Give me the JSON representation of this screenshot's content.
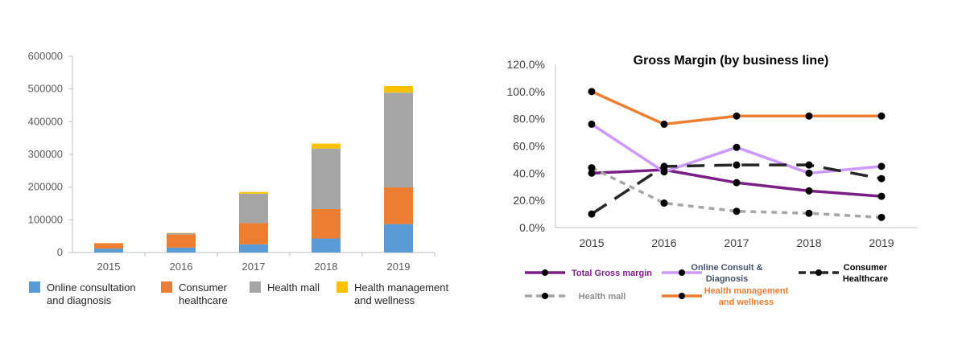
{
  "chart_data": [
    {
      "type": "bar",
      "stacked": true,
      "categories": [
        "2015",
        "2016",
        "2017",
        "2018",
        "2019"
      ],
      "series": [
        {
          "name": "Online consultation and diagnosis",
          "legend_lines": [
            "Online consultation",
            "and diagnosis"
          ],
          "color": "#5b9bd5",
          "values": [
            12000,
            15000,
            25000,
            43000,
            87000
          ]
        },
        {
          "name": "Consumer healthcare",
          "legend_lines": [
            "Consumer",
            "healthcare"
          ],
          "color": "#ed7d31",
          "values": [
            16000,
            40000,
            65000,
            90000,
            112000
          ]
        },
        {
          "name": "Health mall",
          "legend_lines": [
            "Health mall"
          ],
          "color": "#a5a5a5",
          "values": [
            1000,
            4000,
            90000,
            185000,
            290000
          ]
        },
        {
          "name": "Health management and wellness",
          "legend_lines": [
            "Health management",
            "and wellness"
          ],
          "color": "#ffc000",
          "values": [
            500,
            1000,
            5000,
            15000,
            20000
          ]
        }
      ],
      "ylim": [
        0,
        600000
      ],
      "yticks": [
        "0",
        "100000",
        "200000",
        "300000",
        "400000",
        "500000",
        "600000"
      ],
      "grid": false,
      "legend": "bottom"
    },
    {
      "type": "line",
      "title": "Gross Margin (by business line)",
      "x": [
        "2015",
        "2016",
        "2017",
        "2018",
        "2019"
      ],
      "ylim": [
        0,
        120
      ],
      "yticks": [
        "0.0%",
        "20.0%",
        "40.0%",
        "60.0%",
        "80.0%",
        "100.0%",
        "120.0%"
      ],
      "grid": false,
      "legend": "bottom",
      "series": [
        {
          "name": "Total Gross margin",
          "legend_lines": [
            "Total Gross margin"
          ],
          "color": "#7b1f87",
          "label_color": "#7b1f87",
          "dash": "",
          "values": [
            40,
            42.5,
            33,
            27,
            23
          ]
        },
        {
          "name": "Online Consult & Diagnosis",
          "legend_lines": [
            "Online Consult &",
            "Diagnosis"
          ],
          "color": "#cc99ff",
          "label_color": "#44546a",
          "dash": "",
          "values": [
            76,
            41,
            59,
            40,
            45
          ]
        },
        {
          "name": "Consumer Healthcare",
          "legend_lines": [
            "Consumer",
            "Healthcare"
          ],
          "color": "#262626",
          "label_color": "#000000",
          "dash": "22,12",
          "values": [
            10,
            45,
            46,
            46,
            36
          ]
        },
        {
          "name": "Health mall",
          "legend_lines": [
            "Health mall"
          ],
          "color": "#a6a6a6",
          "label_color": "#8c8c8c",
          "dash": "7,6",
          "values": [
            44,
            18,
            12,
            10.5,
            7.5
          ]
        },
        {
          "name": "Health management and wellness",
          "legend_lines": [
            "Health management",
            "and wellness"
          ],
          "color": "#ed7d31",
          "label_color": "#ed7d31",
          "dash": "",
          "values": [
            100,
            76,
            82,
            82,
            82
          ]
        }
      ]
    }
  ]
}
